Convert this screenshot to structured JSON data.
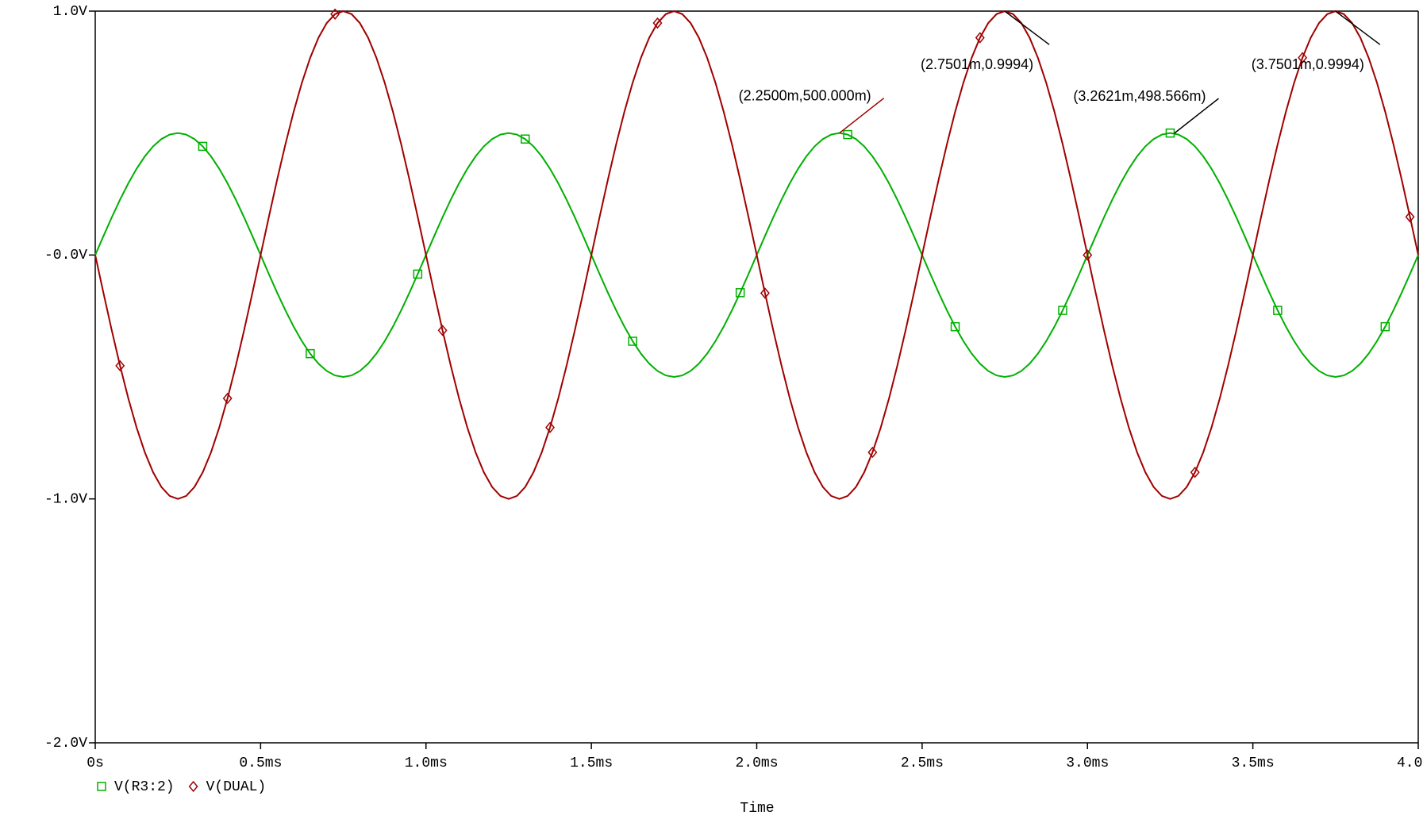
{
  "chart_data": {
    "type": "line",
    "x_label": "Time",
    "x": [
      0,
      0.025,
      0.05,
      0.075,
      0.1,
      0.125,
      0.15,
      0.175,
      0.2,
      0.225,
      0.25,
      0.275,
      0.3,
      0.325,
      0.35,
      0.375,
      0.4,
      0.425,
      0.45,
      0.475,
      0.5,
      0.525,
      0.55,
      0.575,
      0.6,
      0.625,
      0.65,
      0.675,
      0.7,
      0.725,
      0.75,
      0.775,
      0.8,
      0.825,
      0.85,
      0.875,
      0.9,
      0.925,
      0.95,
      0.975,
      1,
      1.025,
      1.05,
      1.075,
      1.1,
      1.125,
      1.15,
      1.175,
      1.2,
      1.225,
      1.25,
      1.275,
      1.3,
      1.325,
      1.35,
      1.375,
      1.4,
      1.425,
      1.45,
      1.475,
      1.5,
      1.525,
      1.55,
      1.575,
      1.6,
      1.625,
      1.65,
      1.675,
      1.7,
      1.725,
      1.75,
      1.775,
      1.8,
      1.825,
      1.85,
      1.875,
      1.9,
      1.925,
      1.95,
      1.975,
      2,
      2.025,
      2.05,
      2.075,
      2.1,
      2.125,
      2.15,
      2.175,
      2.2,
      2.225,
      2.25,
      2.275,
      2.3,
      2.325,
      2.35,
      2.375,
      2.4,
      2.425,
      2.45,
      2.475,
      2.5,
      2.525,
      2.55,
      2.575,
      2.6,
      2.625,
      2.65,
      2.675,
      2.7,
      2.725,
      2.75,
      2.775,
      2.8,
      2.825,
      2.85,
      2.875,
      2.9,
      2.925,
      2.95,
      2.975,
      3,
      3.025,
      3.05,
      3.075,
      3.1,
      3.125,
      3.15,
      3.175,
      3.2,
      3.225,
      3.25,
      3.275,
      3.3,
      3.325,
      3.35,
      3.375,
      3.4,
      3.425,
      3.45,
      3.475,
      3.5,
      3.525,
      3.55,
      3.575,
      3.6,
      3.625,
      3.65,
      3.675,
      3.7,
      3.725,
      3.75,
      3.775,
      3.8,
      3.825,
      3.85,
      3.875,
      3.9,
      3.925,
      3.95,
      3.975,
      4
    ],
    "series": [
      {
        "name": "V(R3:2)",
        "color": "#00b000",
        "marker": "square",
        "values": [
          0,
          0.0782,
          0.1545,
          0.227,
          0.2939,
          0.3536,
          0.4045,
          0.4455,
          0.4755,
          0.4938,
          0.5,
          0.4938,
          0.4755,
          0.4455,
          0.4045,
          0.3536,
          0.2939,
          0.227,
          0.1545,
          0.0782,
          0,
          -0.0782,
          -0.1545,
          -0.227,
          -0.2939,
          -0.3536,
          -0.4045,
          -0.4455,
          -0.4755,
          -0.4938,
          -0.5,
          -0.4938,
          -0.4755,
          -0.4455,
          -0.4045,
          -0.3536,
          -0.2939,
          -0.227,
          -0.1545,
          -0.0782,
          0,
          0.0782,
          0.1545,
          0.227,
          0.2939,
          0.3536,
          0.4045,
          0.4455,
          0.4755,
          0.4938,
          0.5,
          0.4938,
          0.4755,
          0.4455,
          0.4045,
          0.3536,
          0.2939,
          0.227,
          0.1545,
          0.0782,
          0,
          -0.0782,
          -0.1545,
          -0.227,
          -0.2939,
          -0.3536,
          -0.4045,
          -0.4455,
          -0.4755,
          -0.4938,
          -0.5,
          -0.4938,
          -0.4755,
          -0.4455,
          -0.4045,
          -0.3536,
          -0.2939,
          -0.227,
          -0.1545,
          -0.0782,
          0,
          0.0782,
          0.1545,
          0.227,
          0.2939,
          0.3536,
          0.4045,
          0.4455,
          0.4755,
          0.4938,
          0.5,
          0.4938,
          0.4755,
          0.4455,
          0.4045,
          0.3536,
          0.2939,
          0.227,
          0.1545,
          0.0782,
          0,
          -0.0782,
          -0.1545,
          -0.227,
          -0.2939,
          -0.3536,
          -0.4045,
          -0.4455,
          -0.4755,
          -0.4938,
          -0.5,
          -0.4938,
          -0.4755,
          -0.4455,
          -0.4045,
          -0.3536,
          -0.2939,
          -0.227,
          -0.1545,
          -0.0782,
          0,
          0.0782,
          0.1545,
          0.227,
          0.2939,
          0.3536,
          0.4045,
          0.4455,
          0.4755,
          0.4938,
          0.5,
          0.4938,
          0.4755,
          0.4455,
          0.4045,
          0.3536,
          0.2939,
          0.227,
          0.1545,
          0.0782,
          0,
          -0.0782,
          -0.1545,
          -0.227,
          -0.2939,
          -0.3536,
          -0.4045,
          -0.4455,
          -0.4755,
          -0.4938,
          -0.5,
          -0.4938,
          -0.4755,
          -0.4455,
          -0.4045,
          -0.3536,
          -0.2939,
          -0.227,
          -0.1545,
          -0.0782,
          0
        ]
      },
      {
        "name": "V(DUAL)",
        "color": "#a00000",
        "marker": "diamond",
        "values": [
          0,
          -0.1564,
          -0.309,
          -0.454,
          -0.5878,
          -0.7071,
          -0.809,
          -0.891,
          -0.9511,
          -0.9877,
          -1,
          -0.9877,
          -0.9511,
          -0.891,
          -0.809,
          -0.7071,
          -0.5878,
          -0.454,
          -0.309,
          -0.1564,
          0,
          0.1564,
          0.309,
          0.454,
          0.5878,
          0.7071,
          0.809,
          0.891,
          0.9511,
          0.9877,
          1,
          0.9877,
          0.9511,
          0.891,
          0.809,
          0.7071,
          0.5878,
          0.454,
          0.309,
          0.1564,
          0,
          -0.1564,
          -0.309,
          -0.454,
          -0.5878,
          -0.7071,
          -0.809,
          -0.891,
          -0.9511,
          -0.9877,
          -1,
          -0.9877,
          -0.9511,
          -0.891,
          -0.809,
          -0.7071,
          -0.5878,
          -0.454,
          -0.309,
          -0.1564,
          0,
          0.1564,
          0.309,
          0.454,
          0.5878,
          0.7071,
          0.809,
          0.891,
          0.9511,
          0.9877,
          1,
          0.9877,
          0.9511,
          0.891,
          0.809,
          0.7071,
          0.5878,
          0.454,
          0.309,
          0.1564,
          0,
          -0.1564,
          -0.309,
          -0.454,
          -0.5878,
          -0.7071,
          -0.809,
          -0.891,
          -0.9511,
          -0.9877,
          -1,
          -0.9877,
          -0.9511,
          -0.891,
          -0.809,
          -0.7071,
          -0.5878,
          -0.454,
          -0.309,
          -0.1564,
          0,
          0.1564,
          0.309,
          0.454,
          0.5878,
          0.7071,
          0.809,
          0.891,
          0.9511,
          0.9877,
          1,
          0.9877,
          0.9511,
          0.891,
          0.809,
          0.7071,
          0.5878,
          0.454,
          0.309,
          0.1564,
          0,
          -0.1564,
          -0.309,
          -0.454,
          -0.5878,
          -0.7071,
          -0.809,
          -0.891,
          -0.9511,
          -0.9877,
          -1,
          -0.9877,
          -0.9511,
          -0.891,
          -0.809,
          -0.7071,
          -0.5878,
          -0.454,
          -0.309,
          -0.1564,
          0,
          0.1564,
          0.309,
          0.454,
          0.5878,
          0.7071,
          0.809,
          0.891,
          0.9511,
          0.9877,
          1,
          0.9877,
          0.9511,
          0.891,
          0.809,
          0.7071,
          0.5878,
          0.454,
          0.309,
          0.1564,
          0
        ]
      }
    ],
    "xlim": [
      0,
      4
    ],
    "ylim": [
      -2,
      1
    ],
    "xticks": [
      {
        "value": 0,
        "label": "0s"
      },
      {
        "value": 0.5,
        "label": "0.5ms"
      },
      {
        "value": 1,
        "label": "1.0ms"
      },
      {
        "value": 1.5,
        "label": "1.5ms"
      },
      {
        "value": 2,
        "label": "2.0ms"
      },
      {
        "value": 2.5,
        "label": "2.5ms"
      },
      {
        "value": 3,
        "label": "3.0ms"
      },
      {
        "value": 3.5,
        "label": "3.5ms"
      },
      {
        "value": 4,
        "label": "4.0ms"
      }
    ],
    "yticks": [
      {
        "value": 1,
        "label": "1.0V"
      },
      {
        "value": 0,
        "label": "-0.0V"
      },
      {
        "value": -1,
        "label": "-1.0V"
      },
      {
        "value": -2,
        "label": "-2.0V"
      }
    ],
    "annotations": [
      {
        "text": "(2.2500m,500.000m)",
        "x": 2.25,
        "y": 0.5,
        "color": "#a00000",
        "line_color": "#a00000"
      },
      {
        "text": "(2.7501m,0.9994)",
        "x": 2.7501,
        "y": 0.9994,
        "color": "#33ee33",
        "line_color": "#000000"
      },
      {
        "text": "(3.2621m,498.566m)",
        "x": 3.2621,
        "y": 0.498566,
        "color": "#33ee33",
        "line_color": "#000000"
      },
      {
        "text": "(3.7501m,0.9994)",
        "x": 3.7501,
        "y": 0.9994,
        "color": "#33ee33",
        "line_color": "#000000"
      }
    ]
  }
}
